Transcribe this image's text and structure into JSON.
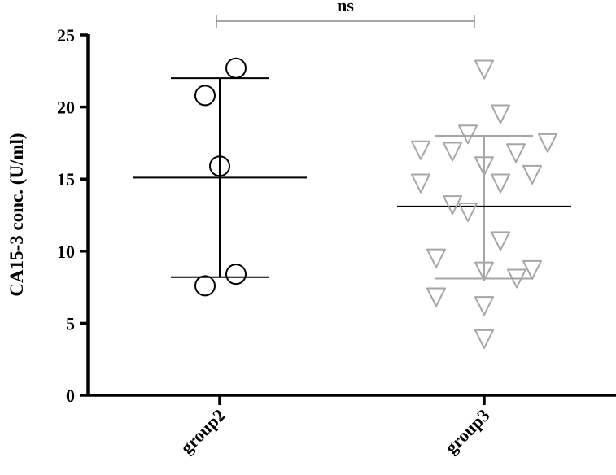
{
  "chart_data": {
    "type": "scatter",
    "ylabel": "CA15-3 conc. (U/ml)",
    "xlabel": "",
    "ylim": [
      0,
      25
    ],
    "yticks": [
      "0",
      "5",
      "10",
      "15",
      "20",
      "25"
    ],
    "grid": false,
    "categories": [
      "group2",
      "group3"
    ],
    "series": [
      {
        "category": "group2",
        "color": "#000000",
        "marker": "circle",
        "values": [
          22.7,
          20.8,
          15.9,
          8.4,
          7.6
        ],
        "mean": 15.1,
        "sd_upper": 22.0,
        "sd_lower": 8.2
      },
      {
        "category": "group3",
        "color": "#a6a6a6",
        "marker": "triangle-down",
        "values": [
          22.6,
          19.5,
          18.1,
          17.5,
          17.0,
          16.9,
          16.8,
          15.9,
          15.3,
          14.7,
          14.7,
          13.2,
          12.7,
          10.7,
          9.5,
          8.6,
          8.7,
          8.1,
          6.8,
          6.2,
          3.9
        ],
        "mean": 13.1,
        "sd_upper": 18.0,
        "sd_lower": 8.1
      }
    ],
    "annotations": [
      {
        "text": "ns",
        "between": [
          "group2",
          "group3"
        ]
      }
    ]
  }
}
